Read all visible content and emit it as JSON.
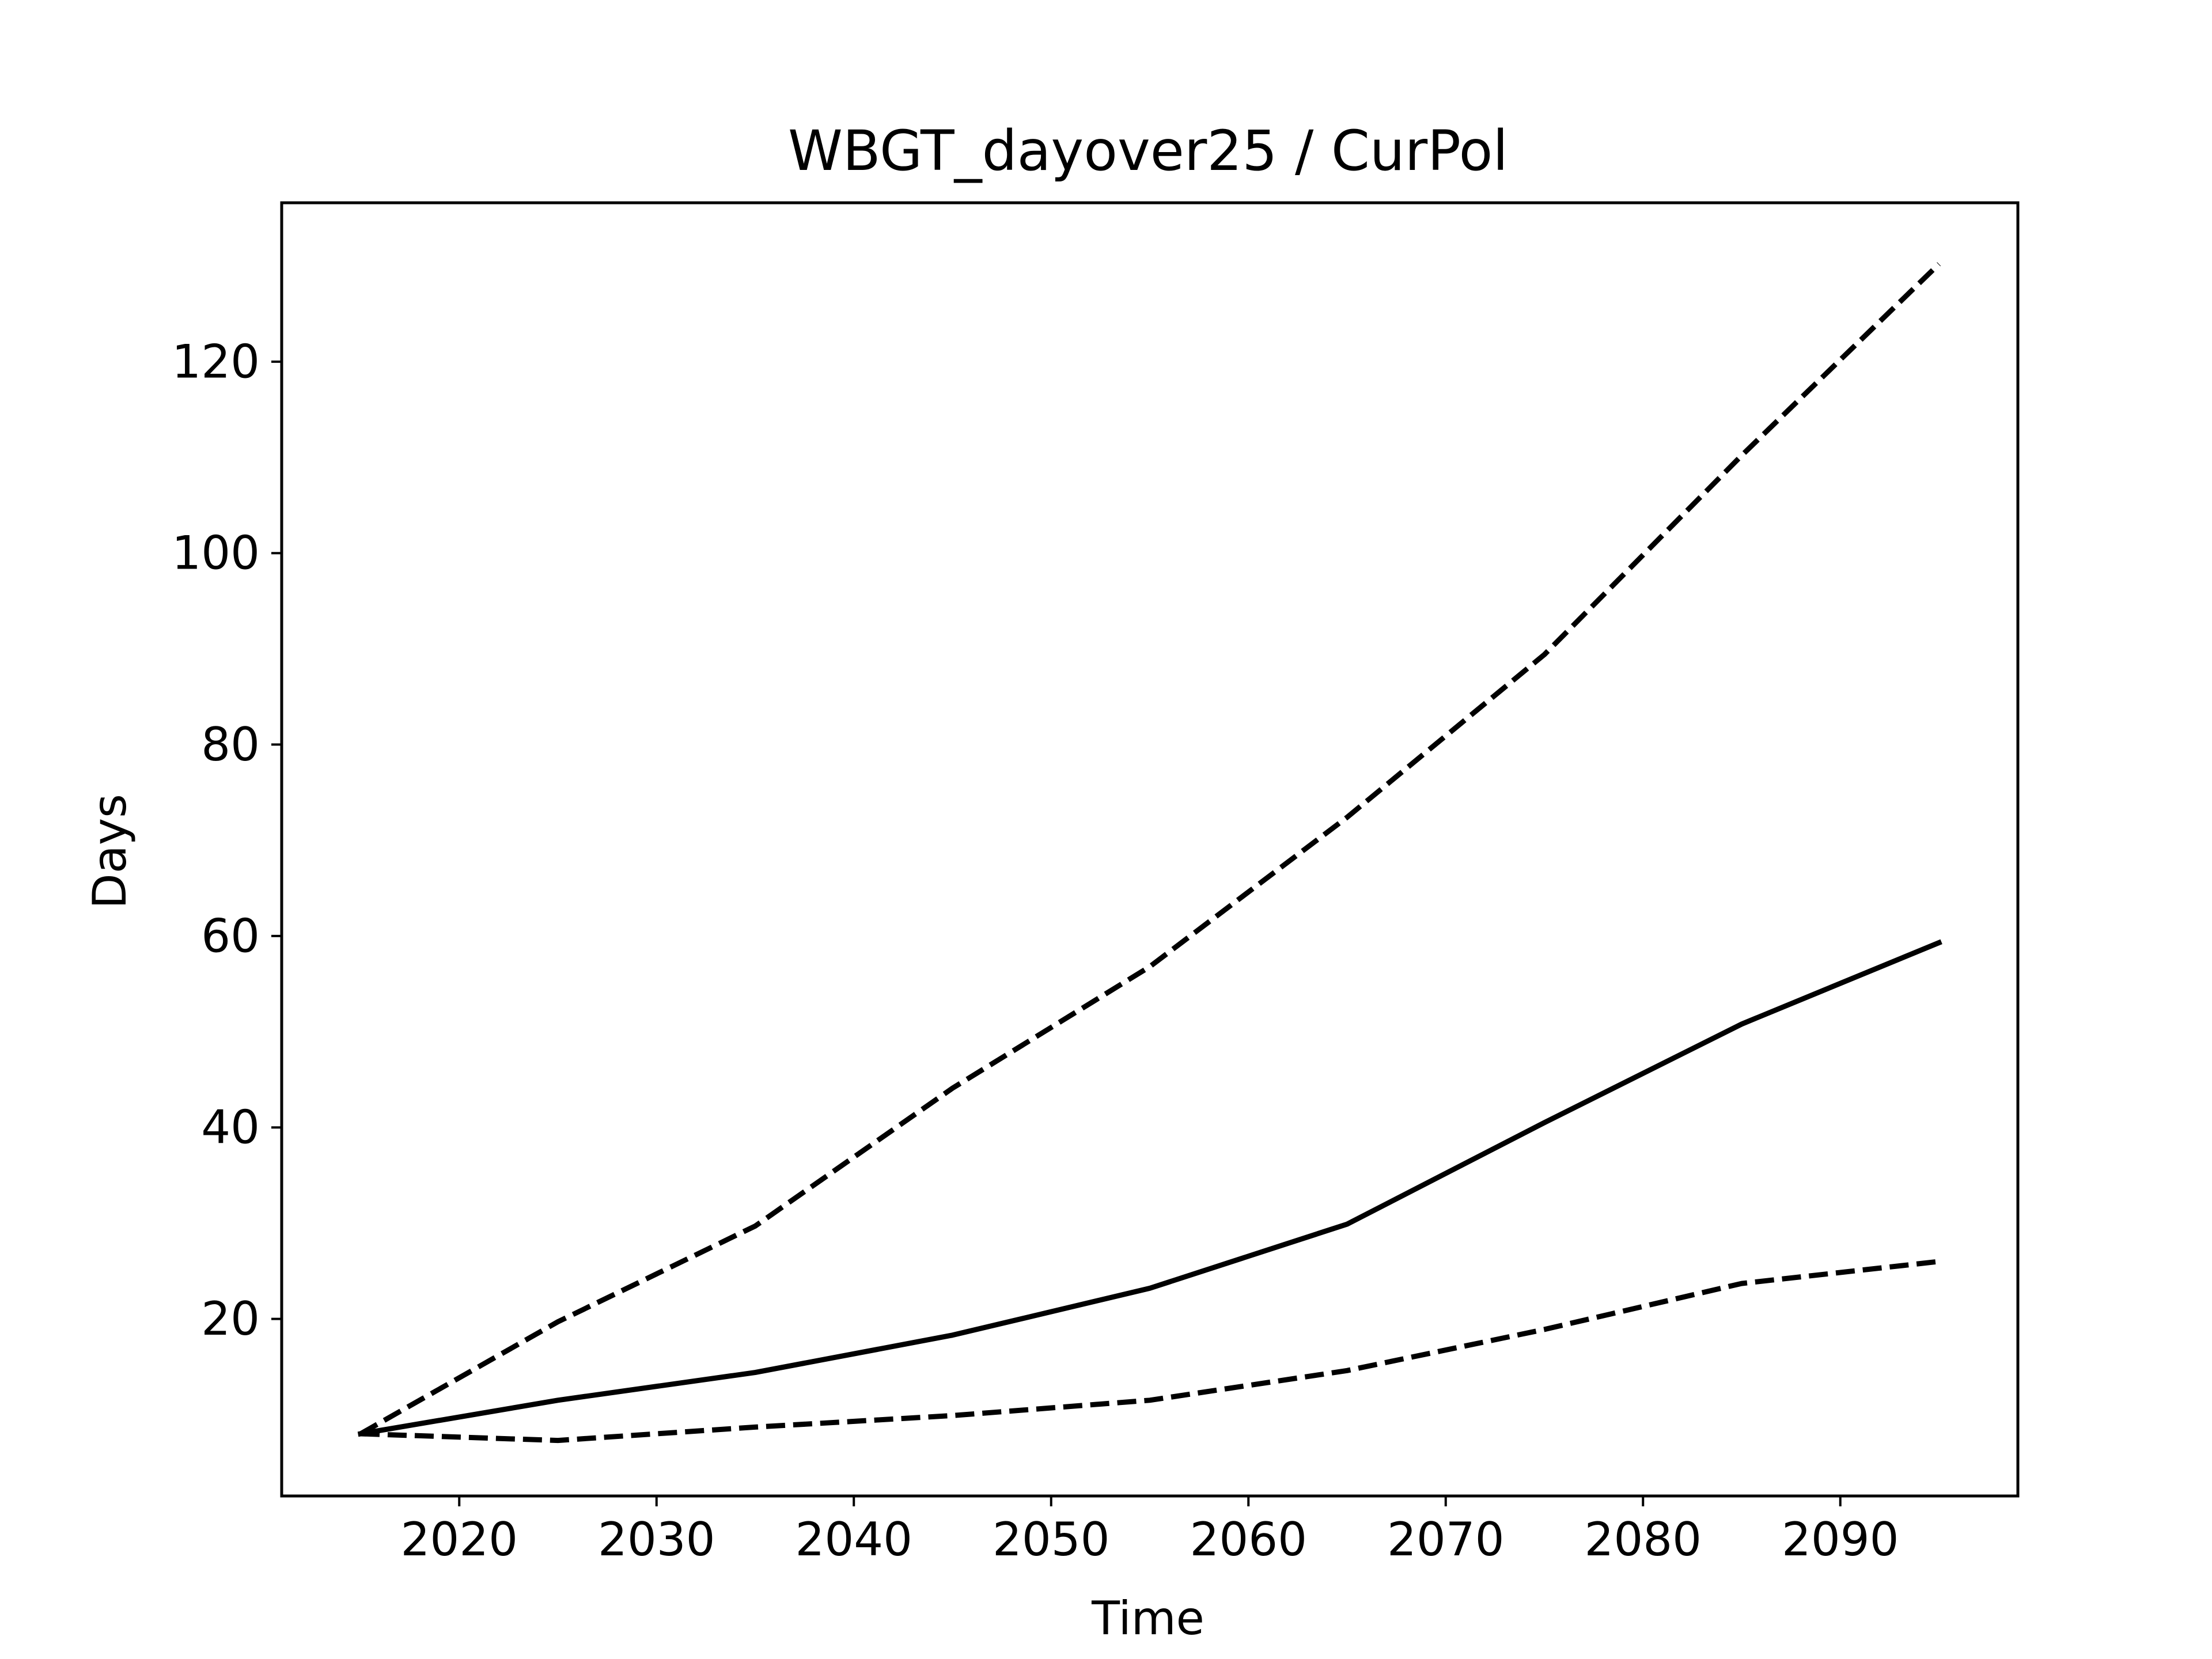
{
  "chart_data": {
    "type": "line",
    "title": "WBGT_dayover25 / CurPol",
    "xlabel": "Time",
    "ylabel": "Days",
    "x": [
      2015,
      2025,
      2035,
      2045,
      2055,
      2065,
      2075,
      2085,
      2095
    ],
    "series": [
      {
        "style": "dashed",
        "values": [
          8.0,
          19.7,
          29.7,
          44.1,
          56.8,
          72.4,
          89.4,
          110.2,
          130.2
        ]
      },
      {
        "style": "solid",
        "values": [
          8.0,
          11.5,
          14.4,
          18.3,
          23.2,
          29.9,
          40.5,
          50.8,
          59.3
        ]
      },
      {
        "style": "dashed",
        "values": [
          8.0,
          7.3,
          8.7,
          9.9,
          11.5,
          14.6,
          18.9,
          23.7,
          26.0
        ]
      }
    ],
    "xlim": [
      2011,
      2099
    ],
    "ylim": [
      1.5,
      136.6
    ],
    "xticks": [
      2020,
      2030,
      2040,
      2050,
      2060,
      2070,
      2080,
      2090
    ],
    "yticks": [
      20,
      40,
      60,
      80,
      100,
      120
    ],
    "grid": false,
    "line_color": "#000000"
  }
}
